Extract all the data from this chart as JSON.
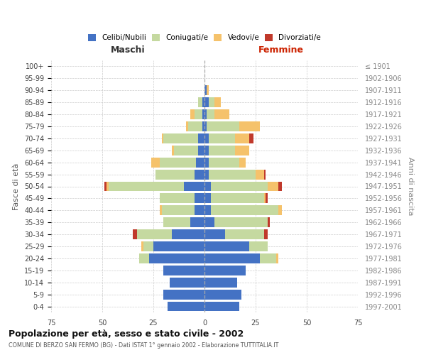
{
  "age_groups": [
    "0-4",
    "5-9",
    "10-14",
    "15-19",
    "20-24",
    "25-29",
    "30-34",
    "35-39",
    "40-44",
    "45-49",
    "50-54",
    "55-59",
    "60-64",
    "65-69",
    "70-74",
    "75-79",
    "80-84",
    "85-89",
    "90-94",
    "95-99",
    "100+"
  ],
  "birth_years": [
    "1997-2001",
    "1992-1996",
    "1987-1991",
    "1982-1986",
    "1977-1981",
    "1972-1976",
    "1967-1971",
    "1962-1966",
    "1957-1961",
    "1952-1956",
    "1947-1951",
    "1942-1946",
    "1937-1941",
    "1932-1936",
    "1927-1931",
    "1922-1926",
    "1917-1921",
    "1912-1916",
    "1907-1911",
    "1902-1906",
    "≤ 1901"
  ],
  "males": {
    "celibi": [
      18,
      20,
      17,
      20,
      27,
      25,
      16,
      7,
      5,
      5,
      10,
      5,
      4,
      3,
      3,
      1,
      1,
      1,
      0,
      0,
      0
    ],
    "coniugati": [
      0,
      0,
      0,
      0,
      5,
      5,
      17,
      13,
      16,
      17,
      37,
      19,
      18,
      12,
      17,
      7,
      4,
      2,
      0,
      0,
      0
    ],
    "vedovi": [
      0,
      0,
      0,
      0,
      0,
      1,
      0,
      0,
      1,
      0,
      1,
      0,
      4,
      1,
      1,
      1,
      2,
      0,
      0,
      0,
      0
    ],
    "divorziati": [
      0,
      0,
      0,
      0,
      0,
      0,
      2,
      0,
      0,
      0,
      1,
      0,
      0,
      0,
      0,
      0,
      0,
      0,
      0,
      0,
      0
    ]
  },
  "females": {
    "nubili": [
      17,
      18,
      16,
      20,
      27,
      22,
      10,
      5,
      3,
      3,
      3,
      2,
      2,
      2,
      2,
      1,
      1,
      2,
      1,
      0,
      0
    ],
    "coniugate": [
      0,
      0,
      0,
      0,
      8,
      9,
      19,
      26,
      33,
      26,
      28,
      23,
      15,
      13,
      13,
      16,
      4,
      3,
      0,
      0,
      0
    ],
    "vedove": [
      0,
      0,
      0,
      0,
      1,
      0,
      0,
      0,
      2,
      1,
      5,
      4,
      3,
      7,
      7,
      10,
      7,
      3,
      1,
      0,
      0
    ],
    "divorziate": [
      0,
      0,
      0,
      0,
      0,
      0,
      2,
      1,
      0,
      1,
      2,
      1,
      0,
      0,
      2,
      0,
      0,
      0,
      0,
      0,
      0
    ]
  },
  "colors": {
    "celibi_nubili": "#4472c4",
    "coniugati_e": "#c5d9a0",
    "vedovi_e": "#f5c26b",
    "divorziati_e": "#c0392b"
  },
  "title": "Popolazione per età, sesso e stato civile - 2002",
  "subtitle": "COMUNE DI BERZO SAN FERMO (BG) - Dati ISTAT 1° gennaio 2002 - Elaborazione TUTTITALIA.IT",
  "xlabel_left": "Maschi",
  "xlabel_right": "Femmine",
  "ylabel_left": "Fasce di età",
  "ylabel_right": "Anni di nascita",
  "xlim": 75,
  "bg_color": "#ffffff",
  "grid_color": "#cccccc"
}
